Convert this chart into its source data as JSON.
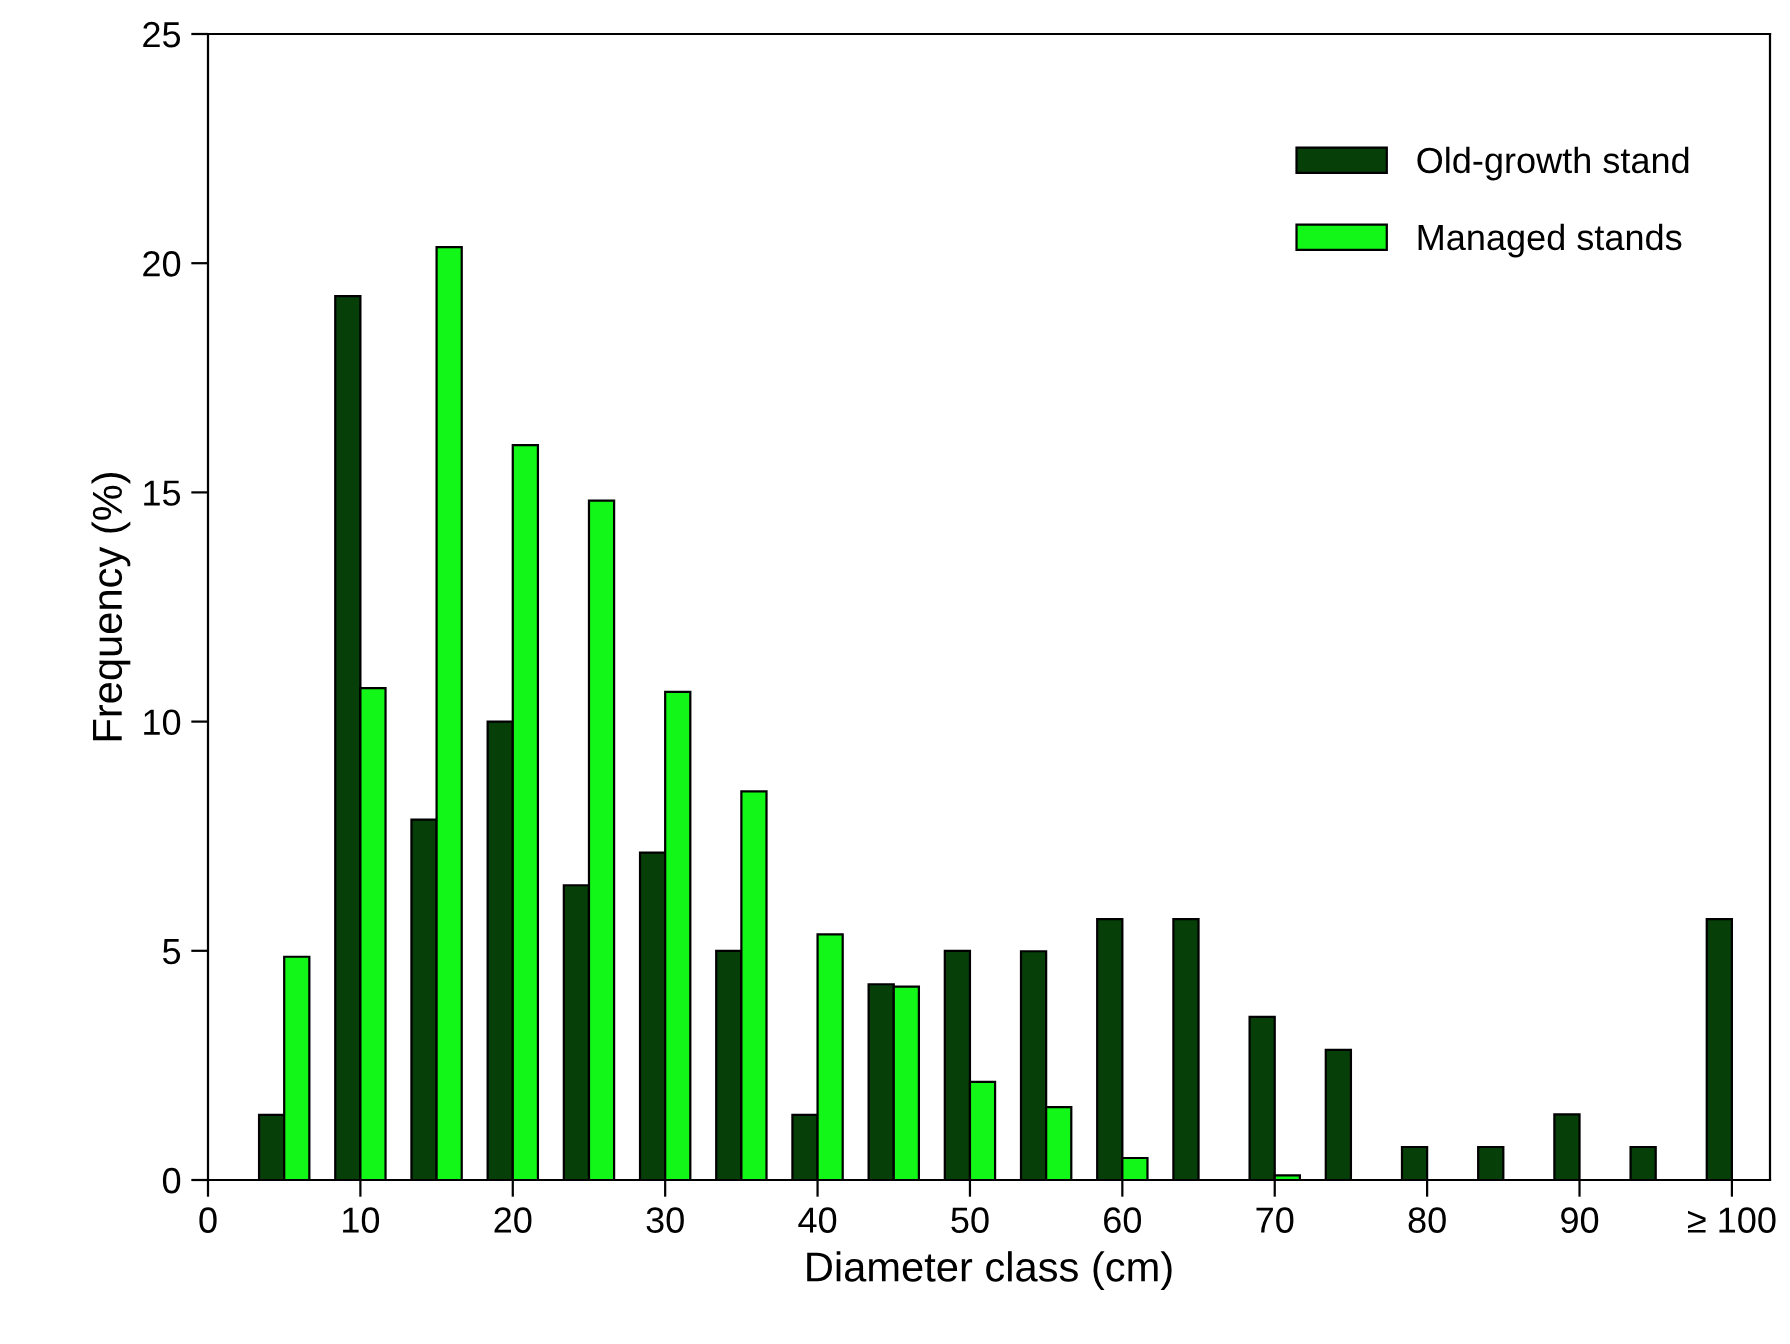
{
  "chart_data": {
    "type": "bar",
    "xlabel": "Diameter class (cm)",
    "ylabel": "Frequency (%)",
    "x": [
      5,
      10,
      15,
      20,
      25,
      30,
      35,
      40,
      45,
      50,
      55,
      60,
      65,
      70,
      75,
      80,
      85,
      90,
      95,
      100
    ],
    "series": [
      {
        "name": "Old-growth stand",
        "color": "#063f08",
        "values": [
          1.42,
          19.28,
          7.86,
          10.0,
          6.43,
          7.14,
          5.0,
          1.42,
          4.27,
          5.0,
          4.99,
          5.69,
          5.69,
          3.56,
          2.84,
          0.72,
          0.72,
          1.43,
          0.72,
          5.69
        ]
      },
      {
        "name": "Managed stands",
        "color": "#12f717",
        "values": [
          4.87,
          10.73,
          20.35,
          16.03,
          14.82,
          10.65,
          8.48,
          5.36,
          4.22,
          2.14,
          1.59,
          0.48,
          null,
          0.1,
          null,
          null,
          null,
          null,
          null,
          null
        ]
      }
    ],
    "xlim": [
      0,
      102.5
    ],
    "xticks": [
      0,
      10,
      20,
      30,
      40,
      50,
      60,
      70,
      80,
      90,
      {
        "value": 100,
        "label": "≥ 100"
      }
    ],
    "ylim": [
      0,
      25
    ],
    "yticks": [
      0,
      5,
      10,
      15,
      20,
      25
    ],
    "grid": false,
    "legend": "top right"
  }
}
